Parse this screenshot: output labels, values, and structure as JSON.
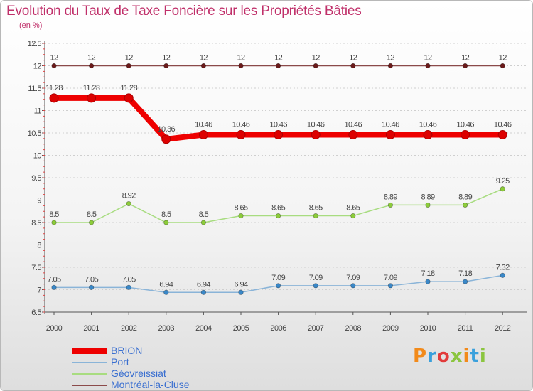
{
  "title": "Evolution du Taux de Taxe Foncière sur les Propriétés Bâties",
  "subtitle": "(en %)",
  "logo_text": "Proxiti",
  "logo_colors": [
    "#f28a1a",
    "#3aa0dc",
    "#e23b3b",
    "#8bc53f",
    "#f28a1a",
    "#3aa0dc",
    "#8bc53f"
  ],
  "chart_data": {
    "type": "line",
    "title": "Evolution du Taux de Taxe Foncière sur les Propriétés Bâties",
    "ylabel": "(en %)",
    "xlabel": "",
    "categories": [
      "2000",
      "2001",
      "2002",
      "2003",
      "2004",
      "2005",
      "2006",
      "2007",
      "2008",
      "2009",
      "2010",
      "2011",
      "2012"
    ],
    "ylim": [
      6.5,
      12.5
    ],
    "yticks": [
      6.5,
      7,
      7.5,
      8,
      8.5,
      9,
      9.5,
      10,
      10.5,
      11,
      11.5,
      12,
      12.5
    ],
    "ytick_labels": [
      "6.5",
      "7",
      "7.5",
      "8",
      "8.5",
      "9",
      "9.5",
      "10",
      "10.5",
      "11",
      "11.5",
      "12",
      "12.5"
    ],
    "series": [
      {
        "name": "Montréal-la-Cluse",
        "color": "#8b4a4a",
        "marker_color": "#6b1a1a",
        "values": [
          12,
          12,
          12,
          12,
          12,
          12,
          12,
          12,
          12,
          12,
          12,
          12,
          12
        ],
        "labels": [
          "12",
          "12",
          "12",
          "12",
          "12",
          "12",
          "12",
          "12",
          "12",
          "12",
          "12",
          "12",
          "12"
        ]
      },
      {
        "name": "BRION",
        "color": "#ee0000",
        "marker_color": "#dd0000",
        "values": [
          11.28,
          11.28,
          11.28,
          10.36,
          10.46,
          10.46,
          10.46,
          10.46,
          10.46,
          10.46,
          10.46,
          10.46,
          10.46
        ],
        "labels": [
          "11.28",
          "11.28",
          "11.28",
          "10.36",
          "10.46",
          "10.46",
          "10.46",
          "10.46",
          "10.46",
          "10.46",
          "10.46",
          "10.46",
          "10.46"
        ]
      },
      {
        "name": "Géovreissiat",
        "color": "#a8dc80",
        "marker_color": "#8ccc3a",
        "values": [
          8.5,
          8.5,
          8.92,
          8.5,
          8.5,
          8.65,
          8.65,
          8.65,
          8.65,
          8.89,
          8.89,
          8.89,
          9.25
        ],
        "labels": [
          "8.5",
          "8.5",
          "8.92",
          "8.5",
          "8.5",
          "8.65",
          "8.65",
          "8.65",
          "8.65",
          "8.89",
          "8.89",
          "8.89",
          "9.25"
        ]
      },
      {
        "name": "Port",
        "color": "#8ab4d8",
        "marker_color": "#3a88c8",
        "values": [
          7.05,
          7.05,
          7.05,
          6.94,
          6.94,
          6.94,
          7.09,
          7.09,
          7.09,
          7.09,
          7.18,
          7.18,
          7.32
        ],
        "labels": [
          "7.05",
          "7.05",
          "7.05",
          "6.94",
          "6.94",
          "6.94",
          "7.09",
          "7.09",
          "7.09",
          "7.09",
          "7.18",
          "7.18",
          "7.32"
        ]
      }
    ],
    "legend": [
      {
        "name": "BRION",
        "color": "#ee0000",
        "thick": true
      },
      {
        "name": "Port",
        "color": "#8ab4d8",
        "thick": false
      },
      {
        "name": "Géovreissiat",
        "color": "#a8dc80",
        "thick": false
      },
      {
        "name": "Montréal-la-Cluse",
        "color": "#8b4a4a",
        "thick": false
      }
    ],
    "legend_position": "bottom-left"
  }
}
